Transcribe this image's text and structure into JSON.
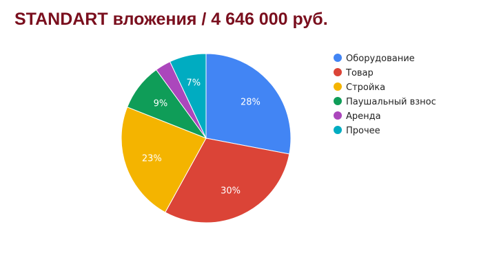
{
  "slide": {
    "title": "STANDART вложения / 4 646 000 руб."
  },
  "chart_data": {
    "type": "pie",
    "title": "",
    "legend_position": "right",
    "start_angle_deg": 0,
    "direction": "clockwise",
    "slices": [
      {
        "label": "Оборудование",
        "value": 28,
        "data_label": "28%",
        "color": "#4285f4"
      },
      {
        "label": "Товар",
        "value": 30,
        "data_label": "30%",
        "color": "#db4437"
      },
      {
        "label": "Стройка",
        "value": 23,
        "data_label": "23%",
        "color": "#f4b400"
      },
      {
        "label": "Паушальный взнос",
        "value": 9,
        "data_label": "9%",
        "color": "#0f9d58"
      },
      {
        "label": "Аренда",
        "value": 3,
        "data_label": "",
        "color": "#ab47bc"
      },
      {
        "label": "Прочее",
        "value": 7,
        "data_label": "7%",
        "color": "#00acc1"
      }
    ]
  }
}
